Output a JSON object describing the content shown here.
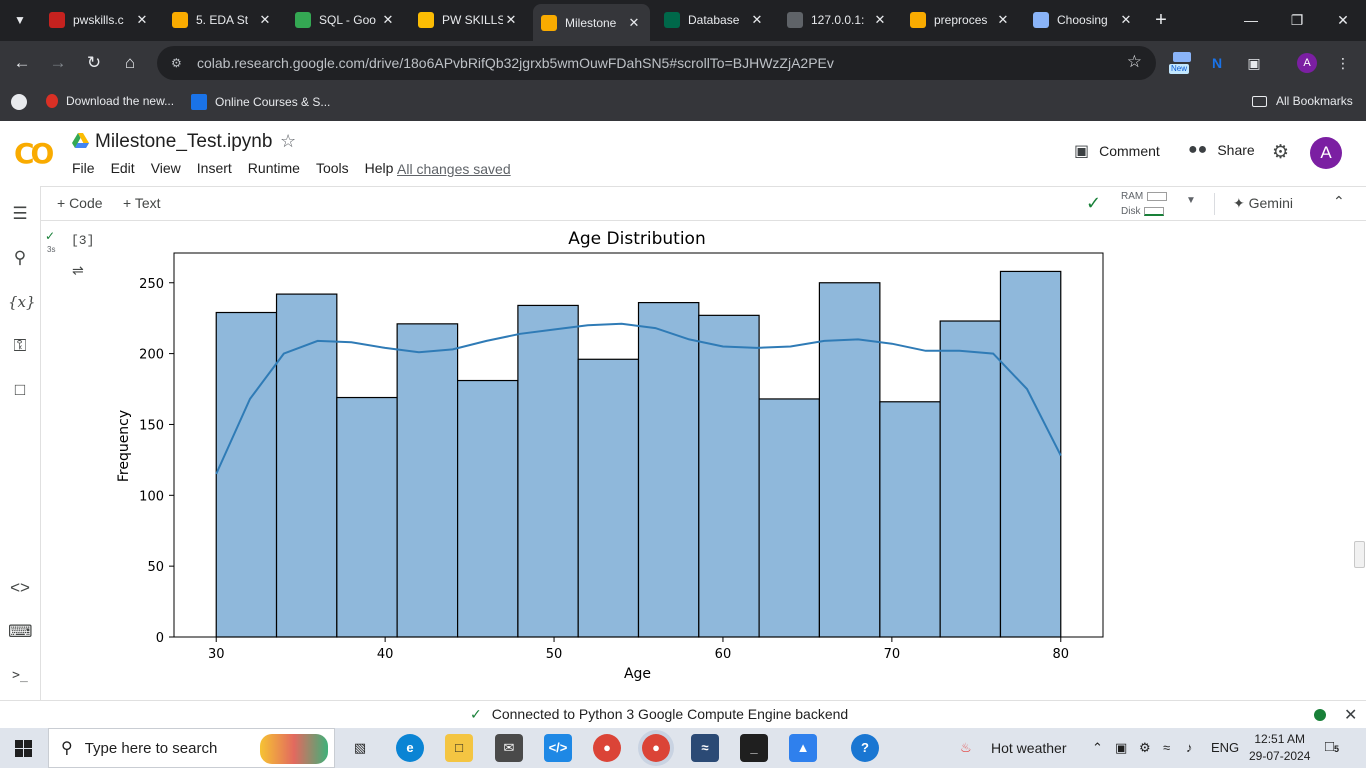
{
  "browser": {
    "tabs": [
      {
        "title": "pwskills.c",
        "color": "#c5221f"
      },
      {
        "title": "5. EDA St",
        "color": "#f9ab00"
      },
      {
        "title": "SQL - Goo",
        "color": "#34a853"
      },
      {
        "title": "PW SKILLS",
        "color": "#fbbc04"
      },
      {
        "title": "Milestone",
        "color": "#f9ab00"
      },
      {
        "title": "Database",
        "color": "#00684a"
      },
      {
        "title": "127.0.0.1:",
        "color": "#5f6368"
      },
      {
        "title": "preproces",
        "color": "#f9ab00"
      },
      {
        "title": "Choosing",
        "color": "#8ab4f8"
      }
    ],
    "url": "colab.research.google.com/drive/18o6APvbRifQb32jgrxb5wmOuwFDahSN5#scrollTo=BJHWzZjA2PEv",
    "new_badge": "New",
    "profile_initial": "A",
    "bookmarks": [
      {
        "label": "Download the new...",
        "color": "#d93025"
      },
      {
        "label": "Online Courses & S...",
        "color": "#1a73e8"
      }
    ],
    "all_bookmarks": "All Bookmarks"
  },
  "colab": {
    "title": "Milestone_Test.ipynb",
    "menu": [
      "File",
      "Edit",
      "View",
      "Insert",
      "Runtime",
      "Tools",
      "Help"
    ],
    "saved_status": "All changes saved",
    "comment": "Comment",
    "share": "Share",
    "avatar": "A",
    "add_code": "+ Code",
    "add_text": "+ Text",
    "ram": "RAM",
    "disk": "Disk",
    "gemini": "Gemini",
    "cell_number": "[3]",
    "cell_time": "3s",
    "status": "Connected to Python 3 Google Compute Engine backend"
  },
  "chart_data": {
    "type": "bar",
    "title": "Age Distribution",
    "xlabel": "Age",
    "ylabel": "Frequency",
    "bin_edges": [
      30,
      33.57,
      37.14,
      40.71,
      44.29,
      47.86,
      51.43,
      55,
      58.57,
      62.14,
      65.71,
      69.29,
      72.86,
      76.43,
      80
    ],
    "values": [
      229,
      242,
      169,
      221,
      181,
      234,
      196,
      236,
      227,
      168,
      250,
      166,
      223,
      258
    ],
    "kde": {
      "x": [
        30,
        32,
        34,
        36,
        38,
        40,
        42,
        44,
        46,
        48,
        50,
        52,
        54,
        56,
        58,
        60,
        62,
        64,
        66,
        68,
        70,
        72,
        74,
        76,
        78,
        80
      ],
      "y": [
        115,
        168,
        200,
        209,
        208,
        204,
        201,
        203,
        209,
        214,
        217,
        220,
        221,
        218,
        210,
        205,
        204,
        205,
        209,
        210,
        207,
        202,
        202,
        200,
        175,
        128
      ]
    },
    "xlim": [
      27.5,
      82.5
    ],
    "ylim": [
      0,
      271
    ],
    "xticks": [
      30,
      40,
      50,
      60,
      70,
      80
    ],
    "yticks": [
      0,
      50,
      100,
      150,
      200,
      250
    ],
    "bar_color": "#8fb8db",
    "line_color": "#2f7bb6"
  },
  "taskbar": {
    "search_placeholder": "Type here to search",
    "weather": "Hot weather",
    "lang": "ENG",
    "time": "12:51 AM",
    "date": "29-07-2024",
    "notif_count": "5"
  }
}
